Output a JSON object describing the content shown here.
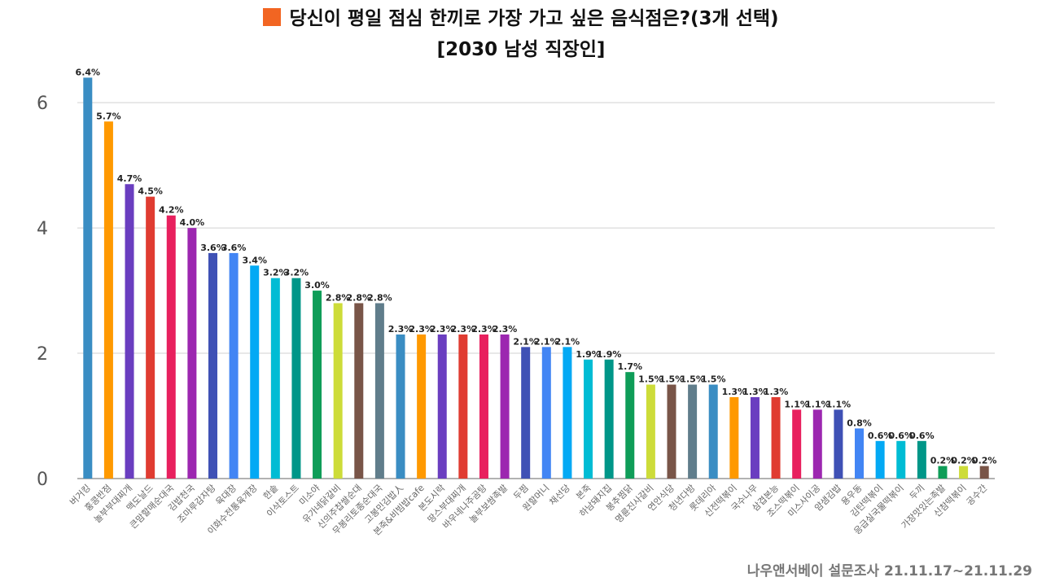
{
  "title": "당신이 평일 점심 한끼로 가장 가고 싶은 음식점은?(3개 선택)",
  "subtitle": "[2030 남성 직장인]",
  "source": "나우앤서베이 설문조사 21.11.17~21.11.29",
  "colors": {
    "title_marker": "#f26522",
    "grid": "#e0e0e0",
    "axis": "#999999"
  },
  "chart_data": {
    "type": "bar",
    "ylim": [
      0,
      6.6
    ],
    "yticks": [
      0,
      2,
      4,
      6
    ],
    "grid": true,
    "categories": [
      "버거킹",
      "홍콩반점",
      "놀부부대찌개",
      "맥도날드",
      "큰맘할매순대국",
      "김밥천국",
      "조마루감자탕",
      "육대장",
      "이화수전통육개장",
      "한솥",
      "이삭토스트",
      "미소야",
      "유가네닭갈비",
      "신의주찹쌀순대",
      "무봉리토종순대국",
      "고봉민김밥人",
      "본죽&비빔밥cafe",
      "본도시락",
      "땅스부대찌개",
      "바우네나주곰탕",
      "놀부보쌈족발",
      "두찜",
      "원할머니",
      "채선당",
      "본죽",
      "하남돼지집",
      "봉추찜닭",
      "명륜진사갈비",
      "연안식당",
      "청년다방",
      "롯데리아",
      "신전떡볶이",
      "국수나무",
      "삼겹본능",
      "조스떡볶이",
      "미스사이공",
      "얌샘김밥",
      "용우동",
      "김탄떡볶이",
      "응급실국물떡볶이",
      "두끼",
      "가장맛있는족발",
      "신참떡볶이",
      "공수간"
    ],
    "values": [
      6.4,
      5.7,
      4.7,
      4.5,
      4.2,
      4.0,
      3.6,
      3.6,
      3.4,
      3.2,
      3.2,
      3.0,
      2.8,
      2.8,
      2.8,
      2.3,
      2.3,
      2.3,
      2.3,
      2.3,
      2.3,
      2.1,
      2.1,
      2.1,
      1.9,
      1.9,
      1.7,
      1.5,
      1.5,
      1.5,
      1.5,
      1.3,
      1.3,
      1.3,
      1.1,
      1.1,
      1.1,
      0.8,
      0.6,
      0.6,
      0.6,
      0.2,
      0.2,
      0.2
    ],
    "labels": [
      "6.4%",
      "5.7%",
      "4.7%",
      "4.5%",
      "4.2%",
      "4.0%",
      "3.6%",
      "3.6%",
      "3.4%",
      "3.2%",
      "3.2%",
      "3.0%",
      "2.8%",
      "2.8%",
      "2.8%",
      "2.3%",
      "2.3%",
      "2.3%",
      "2.3%",
      "2.3%",
      "2.3%",
      "2.1%",
      "2.1%",
      "2.1%",
      "1.9%",
      "1.9%",
      "1.7%",
      "1.5%",
      "1.5%",
      "1.5%",
      "1.5%",
      "1.3%",
      "1.3%",
      "1.3%",
      "1.1%",
      "1.1%",
      "1.1%",
      "0.8%",
      "0.6%",
      "0.6%",
      "0.6%",
      "0.2%",
      "0.2%",
      "0.2%"
    ],
    "bar_colors": [
      "#3a8dc3",
      "#ff9900",
      "#6a3ec0",
      "#e03c31",
      "#e8205e",
      "#9c27b0",
      "#3f51b5",
      "#4285f4",
      "#03a9f4",
      "#00bcd4",
      "#009688",
      "#0f9d58",
      "#cddc39",
      "#795548",
      "#607d8b",
      "#3a8dc3",
      "#ff9900",
      "#6a3ec0",
      "#e03c31",
      "#e8205e",
      "#9c27b0",
      "#3f51b5",
      "#4285f4",
      "#03a9f4",
      "#00bcd4",
      "#009688",
      "#0f9d58",
      "#cddc39",
      "#795548",
      "#607d8b",
      "#3a8dc3",
      "#ff9900",
      "#6a3ec0",
      "#e03c31",
      "#e8205e",
      "#9c27b0",
      "#3f51b5",
      "#4285f4",
      "#03a9f4",
      "#00bcd4",
      "#009688",
      "#0f9d58",
      "#cddc39",
      "#795548"
    ]
  }
}
